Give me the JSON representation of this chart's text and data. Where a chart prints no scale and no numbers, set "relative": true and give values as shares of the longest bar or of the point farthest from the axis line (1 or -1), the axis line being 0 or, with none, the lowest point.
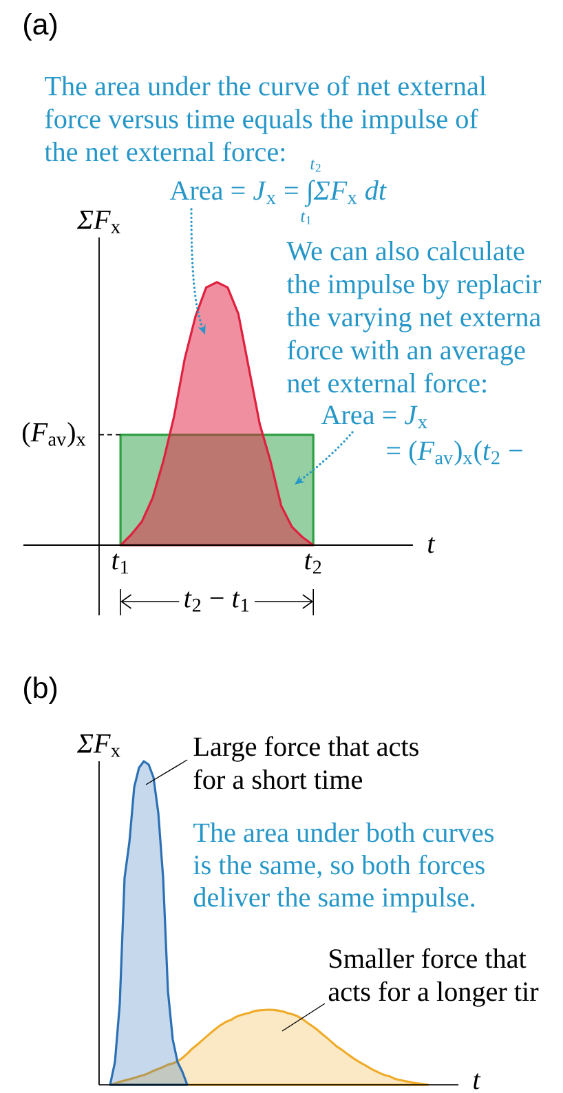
{
  "chart_data": [
    {
      "type": "area",
      "title": "(a)",
      "subtitle": "The area under the curve of net external force versus time equals the impulse of the net external force:",
      "xlabel": "*t*",
      "ylabel": "*ΣF*$_{x}$",
      "relative": true,
      "categories": [
        "*t*$_{1}$",
        null,
        null,
        null,
        null,
        null,
        null,
        null,
        null,
        null,
        null,
        null,
        null,
        null,
        null,
        null,
        null,
        null,
        "*t*$_{2}$"
      ],
      "series": [
        {
          "color": "#2ea043",
          "values": [
            0.42,
            0.42,
            0.42,
            0.42,
            0.42,
            0.42,
            0.42,
            0.42,
            0.42,
            0.42,
            0.42,
            0.42,
            0.42,
            0.42,
            0.42,
            0.42,
            0.42,
            0.42,
            0.42
          ]
        },
        {
          "color": "#e0203f",
          "values": [
            0,
            0.04,
            0.09,
            0.18,
            0.32,
            0.49,
            0.71,
            0.87,
            0.98,
            1,
            0.98,
            0.88,
            0.67,
            0.46,
            0.32,
            0.15,
            0.07,
            0.03,
            0
          ]
        }
      ],
      "ref_lines": [
        {
          "axis": "y",
          "value": 0.42,
          "label": "(*F*$_{av}$)$_{x}$",
          "line_style": "dashed"
        }
      ],
      "annotations": [
        "Area = *J*$_{x}$ = ∫*ΣF*$_{x}$ *dt*",
        "*t*$_{2}$",
        "*t*$_{1}$",
        "We can also calculate",
        "the impulse by replacir",
        "the varying net externa",
        "force with an average",
        "net external force:",
        "Area = *J*$_{x}$",
        "= (*F*$_{av}$)$_{x}$(*t*$_{2}$ −",
        "*t*$_{2}$ − *t*$_{1}$"
      ]
    },
    {
      "type": "area",
      "title": "(b)",
      "xlabel": "*t*",
      "ylabel": "*ΣF*$_{x}$",
      "relative": true,
      "categories": [
        null,
        null,
        null,
        null,
        null,
        null,
        null,
        null,
        null,
        null,
        null,
        null,
        null,
        null,
        null,
        null,
        null,
        null,
        null,
        null,
        null,
        null,
        null,
        null,
        null,
        null,
        null,
        null,
        null,
        null,
        null,
        null,
        null,
        null,
        null,
        null,
        null,
        null,
        null,
        null,
        null,
        null,
        null,
        null,
        null,
        null,
        null,
        null,
        null,
        null,
        null,
        null,
        null,
        null,
        null,
        null,
        null,
        null,
        null,
        null,
        null,
        null,
        null,
        null,
        null,
        null,
        null
      ],
      "series": [
        {
          "color": "#efac2b",
          "values": [
            0,
            0.004,
            0.009,
            0.013,
            0.017,
            0.021,
            0.026,
            0.03,
            0.036,
            0.043,
            0.049,
            0.055,
            0.062,
            0.066,
            0.072,
            0.083,
            0.096,
            0.111,
            0.123,
            0.136,
            0.149,
            0.162,
            0.174,
            0.185,
            0.194,
            0.2,
            0.209,
            0.215,
            0.219,
            0.223,
            0.228,
            0.23,
            0.231,
            0.232,
            0.231,
            0.229,
            0.226,
            0.221,
            0.217,
            0.211,
            0.202,
            0.191,
            0.181,
            0.17,
            0.157,
            0.145,
            0.132,
            0.119,
            0.109,
            0.098,
            0.087,
            0.077,
            0.068,
            0.06,
            0.051,
            0.043,
            0.036,
            0.03,
            0.026,
            0.019,
            0.015,
            0.012,
            0.009,
            0.006,
            0.004,
            0.002,
            0
          ]
        },
        {
          "color": "#2b70b5",
          "values": [
            0,
            0.07,
            0.25,
            0.64,
            0.75,
            0.92,
            0.98,
            1,
            0.99,
            0.95,
            0.84,
            0.64,
            0.29,
            0.14,
            0.07,
            0.04,
            0,
            null,
            null,
            null,
            null,
            null,
            null,
            null,
            null,
            null,
            null,
            null,
            null,
            null,
            null,
            null,
            null,
            null,
            null,
            null,
            null,
            null,
            null,
            null,
            null,
            null,
            null,
            null,
            null,
            null,
            null,
            null,
            null,
            null,
            null,
            null,
            null,
            null,
            null,
            null,
            null,
            null,
            null,
            null,
            null,
            null,
            null,
            null,
            null,
            null,
            null
          ]
        }
      ],
      "annotations": [
        "Large force that acts",
        "for a short time",
        "The area under both curves",
        "is the same, so both forces",
        "deliver the same impulse.",
        "Smaller force that",
        "acts for a longer tir"
      ]
    }
  ]
}
